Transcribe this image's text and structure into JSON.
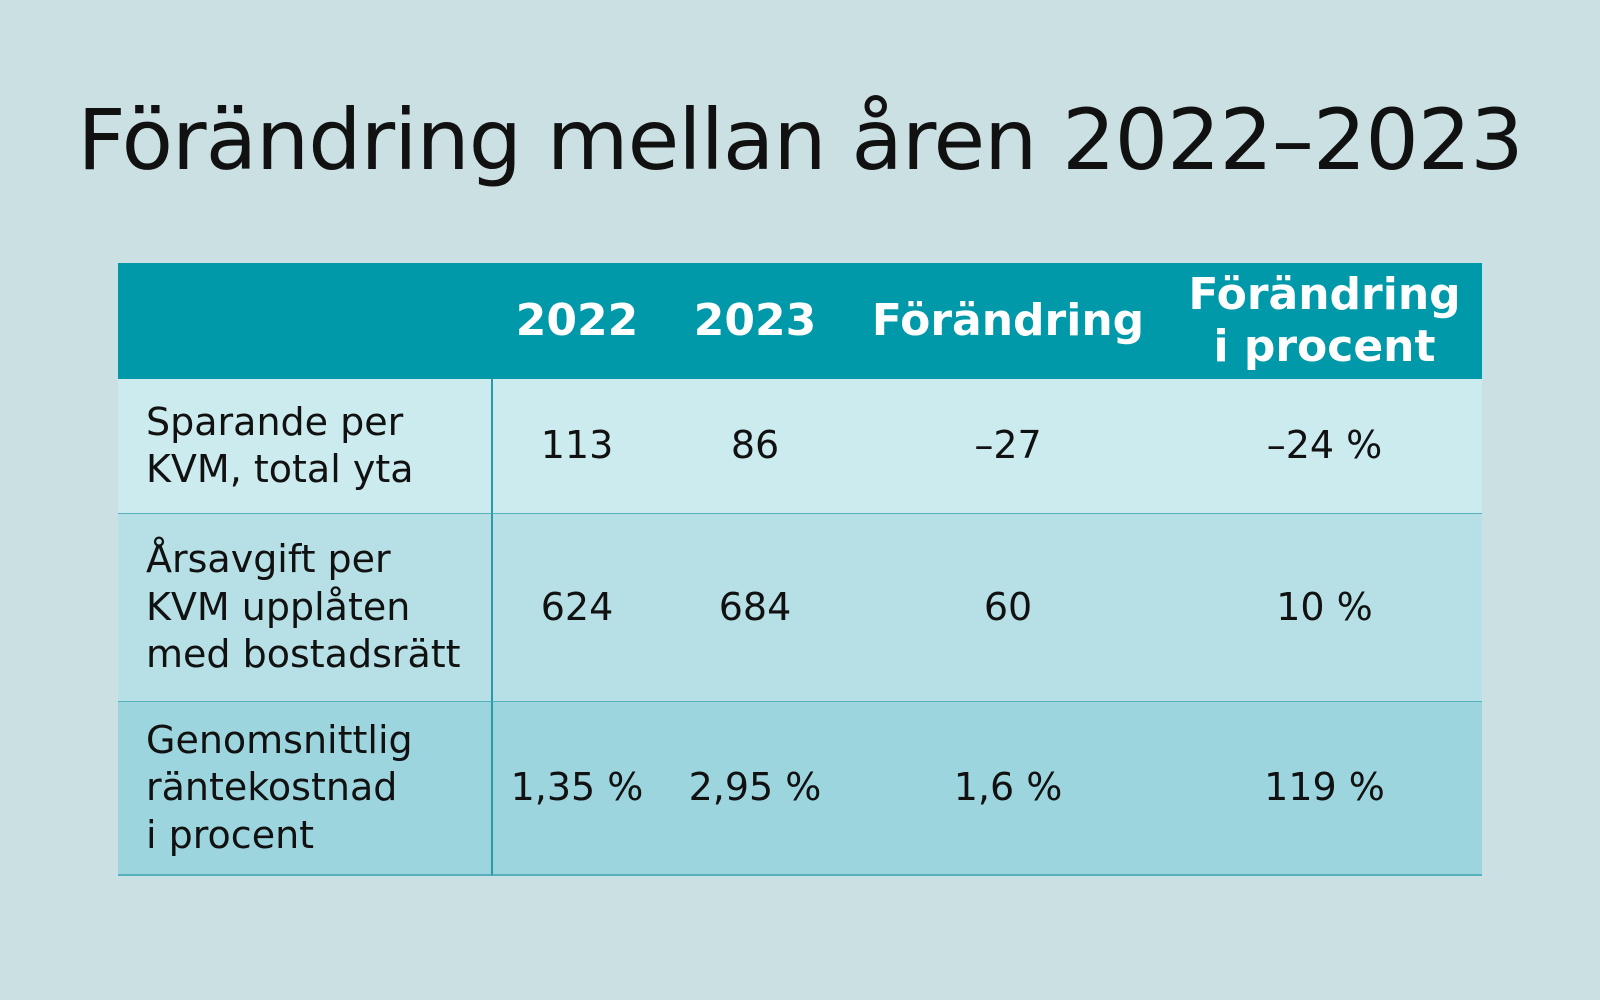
{
  "title": "Förändring mellan åren 2022–2023",
  "chart_data": {
    "type": "table",
    "columns": [
      "",
      "2022",
      "2023",
      "Förändring",
      "Förändring\ni procent"
    ],
    "rows": [
      {
        "label": "Sparande per\nKVM, total yta",
        "values": [
          "113",
          "86",
          "–27",
          "–24 %"
        ]
      },
      {
        "label": "Årsavgift per\nKVM upplåten\nmed bostadsrätt",
        "values": [
          "624",
          "684",
          "60",
          "10 %"
        ]
      },
      {
        "label": "Genomsnittlig\nräntekostnad\ni procent",
        "values": [
          "1,35 %",
          "2,95 %",
          "1,6 %",
          "119 %"
        ]
      }
    ]
  },
  "colors": {
    "background": "#cae0e3",
    "header": "#0099aa",
    "row_1": "#cbebee",
    "row_2": "#b6e0e5",
    "row_3": "#9cd5de"
  }
}
